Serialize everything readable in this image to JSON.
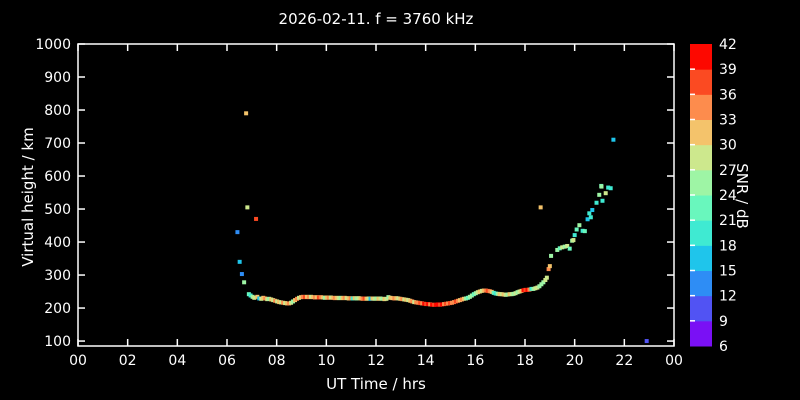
{
  "title": "2026-02-11. f = 3760 kHz",
  "axes": {
    "xlabel": "UT Time / hrs",
    "ylabel": "Virtual height / km",
    "x_tick_labels": [
      "00",
      "02",
      "04",
      "06",
      "08",
      "10",
      "12",
      "14",
      "16",
      "18",
      "20",
      "22",
      "00"
    ],
    "x_tick_hours": [
      0,
      2,
      4,
      6,
      8,
      10,
      12,
      14,
      16,
      18,
      20,
      22,
      24
    ],
    "y_tick_labels": [
      "100",
      "200",
      "300",
      "400",
      "500",
      "600",
      "700",
      "800",
      "900",
      "1000"
    ],
    "y_tick_values": [
      100,
      200,
      300,
      400,
      500,
      600,
      700,
      800,
      900,
      1000
    ]
  },
  "colorbar": {
    "label": "SNR / dB",
    "tick_values": [
      6,
      9,
      12,
      15,
      18,
      21,
      24,
      27,
      30,
      33,
      36,
      39,
      42
    ],
    "range": [
      6,
      42
    ],
    "segment_colors_bottom_to_top": [
      "#7a10f5",
      "#5153f3",
      "#2e8df5",
      "#1fc5eb",
      "#3fead2",
      "#69f7bd",
      "#9ef5a5",
      "#cde88d",
      "#f4c36b",
      "#fd8c4d",
      "#fb4a22",
      "#fd0800"
    ]
  },
  "chart_data": {
    "type": "scatter",
    "title": "2026-02-11. f = 3760 kHz",
    "xlabel": "UT Time / hrs",
    "ylabel": "Virtual height / km",
    "zlabel": "SNR / dB",
    "xlim": [
      0,
      24
    ],
    "ylim": [
      85,
      1000
    ],
    "zlim": [
      6,
      42
    ],
    "grid": false,
    "legend": "colorbar-right",
    "points_hour_km_snr": [
      [
        6.42,
        430,
        13
      ],
      [
        6.51,
        340,
        16
      ],
      [
        6.6,
        303,
        13
      ],
      [
        6.69,
        278,
        25
      ],
      [
        6.77,
        790,
        31
      ],
      [
        6.82,
        505,
        28
      ],
      [
        7.17,
        470,
        37
      ],
      [
        6.88,
        242,
        22
      ],
      [
        6.95,
        238,
        19
      ],
      [
        7.03,
        234,
        25
      ],
      [
        7.1,
        231,
        28
      ],
      [
        7.22,
        234,
        31
      ],
      [
        7.3,
        229,
        16
      ],
      [
        7.38,
        228,
        28
      ],
      [
        7.46,
        231,
        31
      ],
      [
        7.54,
        229,
        34
      ],
      [
        7.62,
        227,
        28
      ],
      [
        7.7,
        228,
        25
      ],
      [
        7.78,
        226,
        31
      ],
      [
        7.86,
        224,
        28
      ],
      [
        7.94,
        222,
        34
      ],
      [
        8.02,
        220,
        28
      ],
      [
        8.1,
        218,
        31
      ],
      [
        8.18,
        217,
        28
      ],
      [
        8.26,
        216,
        34
      ],
      [
        8.34,
        215,
        28
      ],
      [
        8.42,
        214,
        31
      ],
      [
        8.5,
        214,
        34
      ],
      [
        8.58,
        216,
        28
      ],
      [
        8.66,
        220,
        25
      ],
      [
        8.74,
        224,
        31
      ],
      [
        8.82,
        228,
        34
      ],
      [
        8.9,
        231,
        28
      ],
      [
        8.98,
        233,
        31
      ],
      [
        9.06,
        234,
        34
      ],
      [
        9.14,
        233,
        37
      ],
      [
        9.22,
        234,
        31
      ],
      [
        9.3,
        233,
        34
      ],
      [
        9.38,
        234,
        28
      ],
      [
        9.46,
        233,
        31
      ],
      [
        9.54,
        232,
        34
      ],
      [
        9.62,
        233,
        31
      ],
      [
        9.7,
        232,
        37
      ],
      [
        9.78,
        233,
        34
      ],
      [
        9.86,
        232,
        31
      ],
      [
        9.94,
        231,
        25
      ],
      [
        10.02,
        232,
        31
      ],
      [
        10.1,
        231,
        34
      ],
      [
        10.18,
        232,
        28
      ],
      [
        10.26,
        231,
        31
      ],
      [
        10.34,
        230,
        34
      ],
      [
        10.42,
        231,
        31
      ],
      [
        10.5,
        230,
        28
      ],
      [
        10.58,
        231,
        25
      ],
      [
        10.66,
        230,
        31
      ],
      [
        10.74,
        231,
        34
      ],
      [
        10.82,
        230,
        28
      ],
      [
        10.9,
        229,
        31
      ],
      [
        10.98,
        230,
        34
      ],
      [
        11.06,
        229,
        19
      ],
      [
        11.14,
        230,
        31
      ],
      [
        11.22,
        229,
        25
      ],
      [
        11.3,
        230,
        28
      ],
      [
        11.38,
        229,
        31
      ],
      [
        11.46,
        228,
        34
      ],
      [
        11.54,
        229,
        37
      ],
      [
        11.62,
        228,
        31
      ],
      [
        11.7,
        229,
        28
      ],
      [
        11.78,
        228,
        16
      ],
      [
        11.86,
        229,
        31
      ],
      [
        11.94,
        228,
        28
      ],
      [
        12.02,
        229,
        25
      ],
      [
        12.1,
        228,
        31
      ],
      [
        12.18,
        229,
        28
      ],
      [
        12.26,
        228,
        25
      ],
      [
        12.34,
        227,
        31
      ],
      [
        12.42,
        228,
        28
      ],
      [
        12.5,
        233,
        25
      ],
      [
        12.58,
        231,
        31
      ],
      [
        12.66,
        230,
        31
      ],
      [
        12.74,
        229,
        34
      ],
      [
        12.82,
        230,
        31
      ],
      [
        12.9,
        229,
        28
      ],
      [
        12.98,
        228,
        31
      ],
      [
        13.06,
        227,
        34
      ],
      [
        13.14,
        226,
        28
      ],
      [
        13.22,
        225,
        31
      ],
      [
        13.3,
        224,
        28
      ],
      [
        13.38,
        222,
        31
      ],
      [
        13.46,
        220,
        34
      ],
      [
        13.54,
        218,
        28
      ],
      [
        13.62,
        217,
        34
      ],
      [
        13.7,
        216,
        34
      ],
      [
        13.78,
        215,
        37
      ],
      [
        13.86,
        214,
        34
      ],
      [
        13.94,
        213,
        40
      ],
      [
        14.02,
        212,
        37
      ],
      [
        14.1,
        212,
        40
      ],
      [
        14.18,
        211,
        34
      ],
      [
        14.26,
        210,
        40
      ],
      [
        14.34,
        210,
        37
      ],
      [
        14.42,
        210,
        40
      ],
      [
        14.5,
        211,
        40
      ],
      [
        14.58,
        210,
        37
      ],
      [
        14.66,
        211,
        40
      ],
      [
        14.74,
        212,
        34
      ],
      [
        14.82,
        213,
        37
      ],
      [
        14.9,
        214,
        34
      ],
      [
        14.98,
        215,
        37
      ],
      [
        15.06,
        216,
        34
      ],
      [
        15.14,
        218,
        34
      ],
      [
        15.22,
        220,
        37
      ],
      [
        15.3,
        222,
        34
      ],
      [
        15.38,
        224,
        31
      ],
      [
        15.46,
        226,
        34
      ],
      [
        15.54,
        228,
        31
      ],
      [
        15.62,
        229,
        25
      ],
      [
        15.7,
        231,
        22
      ],
      [
        15.78,
        234,
        25
      ],
      [
        15.86,
        238,
        25
      ],
      [
        15.94,
        242,
        22
      ],
      [
        16.02,
        245,
        25
      ],
      [
        16.1,
        248,
        28
      ],
      [
        16.18,
        250,
        31
      ],
      [
        16.26,
        252,
        28
      ],
      [
        16.34,
        253,
        31
      ],
      [
        16.42,
        253,
        34
      ],
      [
        16.5,
        252,
        37
      ],
      [
        16.58,
        251,
        34
      ],
      [
        16.66,
        249,
        31
      ],
      [
        16.74,
        246,
        22
      ],
      [
        16.82,
        244,
        19
      ],
      [
        16.9,
        243,
        25
      ],
      [
        16.98,
        242,
        31
      ],
      [
        17.06,
        242,
        28
      ],
      [
        17.14,
        241,
        31
      ],
      [
        17.22,
        240,
        28
      ],
      [
        17.3,
        241,
        25
      ],
      [
        17.38,
        242,
        31
      ],
      [
        17.46,
        242,
        28
      ],
      [
        17.54,
        243,
        25
      ],
      [
        17.62,
        245,
        28
      ],
      [
        17.7,
        248,
        25
      ],
      [
        17.78,
        250,
        28
      ],
      [
        17.86,
        252,
        31
      ],
      [
        17.94,
        254,
        40
      ],
      [
        18.02,
        255,
        37
      ],
      [
        18.1,
        255,
        40
      ],
      [
        18.18,
        256,
        34
      ],
      [
        18.26,
        258,
        19
      ],
      [
        18.34,
        258,
        25
      ],
      [
        18.42,
        260,
        28
      ],
      [
        18.5,
        262,
        28
      ],
      [
        18.58,
        266,
        25
      ],
      [
        18.63,
        505,
        31
      ],
      [
        18.66,
        272,
        25
      ],
      [
        18.74,
        278,
        25
      ],
      [
        18.82,
        285,
        28
      ],
      [
        18.88,
        292,
        28
      ],
      [
        18.95,
        318,
        34
      ],
      [
        19.0,
        327,
        31
      ],
      [
        19.05,
        358,
        25
      ],
      [
        19.3,
        376,
        25
      ],
      [
        19.4,
        381,
        22
      ],
      [
        19.5,
        384,
        28
      ],
      [
        19.6,
        386,
        25
      ],
      [
        19.7,
        388,
        28
      ],
      [
        19.8,
        380,
        22
      ],
      [
        19.9,
        404,
        25
      ],
      [
        19.95,
        406,
        28
      ],
      [
        20.0,
        421,
        19
      ],
      [
        20.08,
        438,
        22
      ],
      [
        20.19,
        451,
        25
      ],
      [
        20.32,
        434,
        19
      ],
      [
        20.41,
        433,
        22
      ],
      [
        20.52,
        469,
        16
      ],
      [
        20.59,
        487,
        19
      ],
      [
        20.65,
        475,
        19
      ],
      [
        20.71,
        497,
        16
      ],
      [
        20.88,
        519,
        19
      ],
      [
        20.99,
        543,
        25
      ],
      [
        21.07,
        570,
        22
      ],
      [
        21.08,
        568,
        25
      ],
      [
        21.12,
        525,
        19
      ],
      [
        21.25,
        548,
        28
      ],
      [
        21.35,
        565,
        19
      ],
      [
        21.45,
        563,
        19
      ],
      [
        21.56,
        710,
        16
      ],
      [
        22.9,
        100,
        10
      ]
    ]
  }
}
